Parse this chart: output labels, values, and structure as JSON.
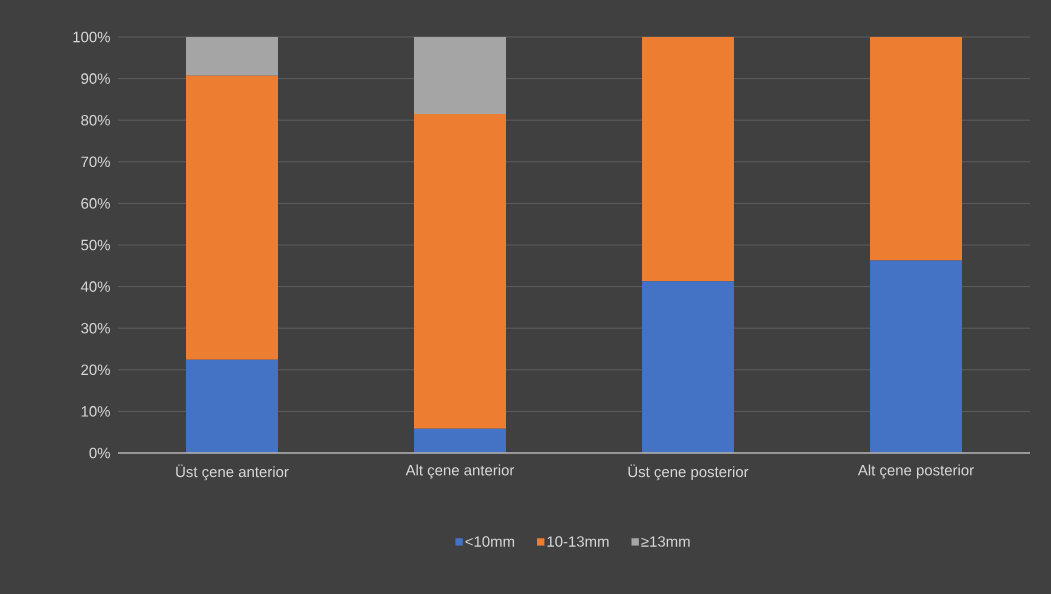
{
  "chart_data": {
    "type": "bar",
    "stacked": true,
    "categories": [
      "Üst çene anterior",
      "Alt çene anterior",
      "Üst çene posterior",
      "Alt çene posterior"
    ],
    "series": [
      {
        "name": "<10mm",
        "color": "#4472c4",
        "values": [
          22.4,
          5.8,
          41.3,
          46.3
        ]
      },
      {
        "name": "10-13mm",
        "color": "#ed7d31",
        "values": [
          68.3,
          75.7,
          58.7,
          53.7
        ]
      },
      {
        "name": "≥13mm",
        "color": "#a5a5a5",
        "values": [
          9.3,
          18.5,
          0,
          0
        ]
      }
    ],
    "ylim": [
      0,
      100
    ],
    "yticks": [
      {
        "value": 0,
        "label": "0%"
      },
      {
        "value": 10,
        "label": "10%"
      },
      {
        "value": 20,
        "label": "20%"
      },
      {
        "value": 30,
        "label": "30%"
      },
      {
        "value": 40,
        "label": "40%"
      },
      {
        "value": 50,
        "label": "50%"
      },
      {
        "value": 60,
        "label": "60%"
      },
      {
        "value": 70,
        "label": "70%"
      },
      {
        "value": 80,
        "label": "80%"
      },
      {
        "value": 90,
        "label": "90%"
      },
      {
        "value": 100,
        "label": "100%"
      }
    ],
    "grid": "y",
    "legend": "bottom"
  }
}
